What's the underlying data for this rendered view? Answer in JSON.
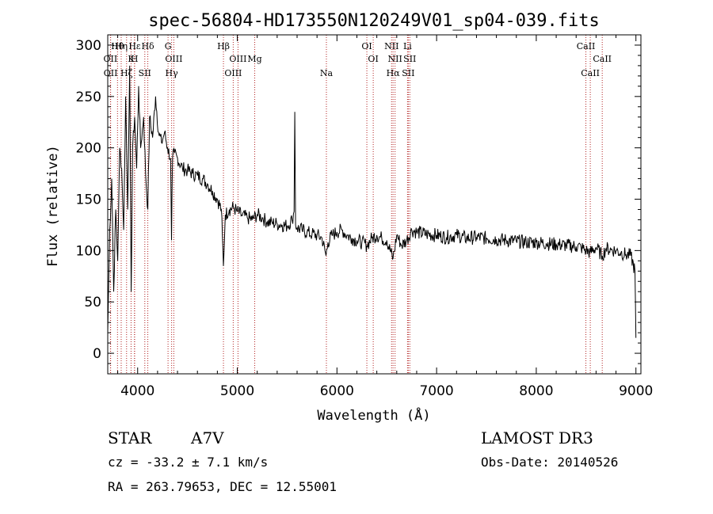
{
  "chart_data": {
    "type": "line",
    "title": "spec-56804-HD173550N120249V01_sp04-039.fits",
    "xlabel": "Wavelength (Å)",
    "ylabel": "Flux (relative)",
    "xlim": [
      3700,
      9050
    ],
    "ylim": [
      -20,
      310
    ],
    "xticks": [
      4000,
      5000,
      6000,
      7000,
      8000,
      9000
    ],
    "yticks": [
      0,
      50,
      100,
      150,
      200,
      250,
      300
    ],
    "xtick_labels": [
      "4000",
      "5000",
      "6000",
      "7000",
      "8000",
      "9000"
    ],
    "ytick_labels": [
      "0",
      "50",
      "100",
      "150",
      "200",
      "250",
      "300"
    ],
    "line_color": "#000000",
    "marker_color": "#b22222",
    "series": [
      {
        "name": "flux",
        "x": [
          3700,
          3720,
          3740,
          3760,
          3780,
          3800,
          3820,
          3840,
          3860,
          3880,
          3900,
          3920,
          3935,
          3950,
          3970,
          3990,
          4010,
          4030,
          4060,
          4080,
          4102,
          4120,
          4150,
          4180,
          4210,
          4240,
          4270,
          4300,
          4330,
          4340,
          4350,
          4370,
          4400,
          4450,
          4500,
          4550,
          4600,
          4650,
          4700,
          4750,
          4800,
          4840,
          4861,
          4880,
          4920,
          4960,
          5000,
          5050,
          5100,
          5150,
          5200,
          5250,
          5300,
          5350,
          5400,
          5450,
          5500,
          5550,
          5570,
          5577,
          5585,
          5600,
          5650,
          5700,
          5750,
          5800,
          5850,
          5890,
          5910,
          5950,
          6000,
          6050,
          6100,
          6150,
          6200,
          6250,
          6300,
          6350,
          6400,
          6450,
          6500,
          6563,
          6600,
          6650,
          6700,
          6750,
          6800,
          6900,
          7000,
          7100,
          7200,
          7300,
          7400,
          7500,
          7600,
          7700,
          7800,
          7900,
          8000,
          8100,
          8200,
          8300,
          8400,
          8450,
          8500,
          8542,
          8600,
          8662,
          8700,
          8750,
          8800,
          8850,
          8900,
          8950,
          8990,
          9000
        ],
        "y": [
          20,
          120,
          170,
          60,
          140,
          90,
          200,
          180,
          120,
          250,
          140,
          280,
          60,
          200,
          230,
          180,
          260,
          200,
          230,
          175,
          140,
          230,
          210,
          250,
          215,
          205,
          215,
          200,
          190,
          110,
          190,
          195,
          190,
          180,
          178,
          175,
          173,
          170,
          165,
          158,
          150,
          140,
          85,
          135,
          140,
          142,
          138,
          134,
          132,
          130,
          135,
          132,
          128,
          127,
          126,
          125,
          124,
          130,
          138,
          235,
          125,
          122,
          120,
          118,
          116,
          115,
          112,
          95,
          108,
          115,
          118,
          120,
          115,
          112,
          110,
          108,
          105,
          112,
          115,
          112,
          110,
          92,
          115,
          105,
          110,
          120,
          118,
          116,
          115,
          113,
          115,
          112,
          113,
          112,
          111,
          110,
          109,
          108,
          108,
          107,
          106,
          105,
          104,
          103,
          100,
          98,
          103,
          95,
          102,
          101,
          100,
          98,
          96,
          95,
          80,
          15
        ]
      }
    ],
    "spectral_lines": [
      {
        "label": "Hθ",
        "x": 3798
      },
      {
        "label": "OII",
        "x": 3727
      },
      {
        "label": "OII",
        "x": 3729
      },
      {
        "label": "Hη",
        "x": 3835
      },
      {
        "label": "K",
        "x": 3934
      },
      {
        "label": "Hζ",
        "x": 3889
      },
      {
        "label": "Hε",
        "x": 3970
      },
      {
        "label": "H",
        "x": 3968
      },
      {
        "label": "SII",
        "x": 4072
      },
      {
        "label": "Hδ",
        "x": 4102
      },
      {
        "label": "OIII",
        "x": 4363
      },
      {
        "label": "Hγ",
        "x": 4341
      },
      {
        "label": "G",
        "x": 4305
      },
      {
        "label": "OIII",
        "x": 5007
      },
      {
        "label": "OIII",
        "x": 4959
      },
      {
        "label": "Hβ",
        "x": 4861
      },
      {
        "label": "Mg",
        "x": 5175
      },
      {
        "label": "Na",
        "x": 5894
      },
      {
        "label": "OI",
        "x": 6300
      },
      {
        "label": "OI",
        "x": 6364
      },
      {
        "label": "Hα",
        "x": 6563
      },
      {
        "label": "NII",
        "x": 6548
      },
      {
        "label": "NII",
        "x": 6583
      },
      {
        "label": "SII",
        "x": 6716
      },
      {
        "label": "Li",
        "x": 6708
      },
      {
        "label": "SII",
        "x": 6731
      },
      {
        "label": "CaII",
        "x": 8542
      },
      {
        "label": "CaII",
        "x": 8498
      },
      {
        "label": "CaII",
        "x": 8662
      }
    ]
  },
  "info": {
    "object_type": "STAR",
    "subclass": "A7V",
    "survey": "LAMOST DR3",
    "cz_text": "cz = -33.2 ± 7.1 km/s",
    "obs_date_text": "Obs-Date: 20140526",
    "coords_text": "RA = 263.79653, DEC =  12.55001"
  }
}
